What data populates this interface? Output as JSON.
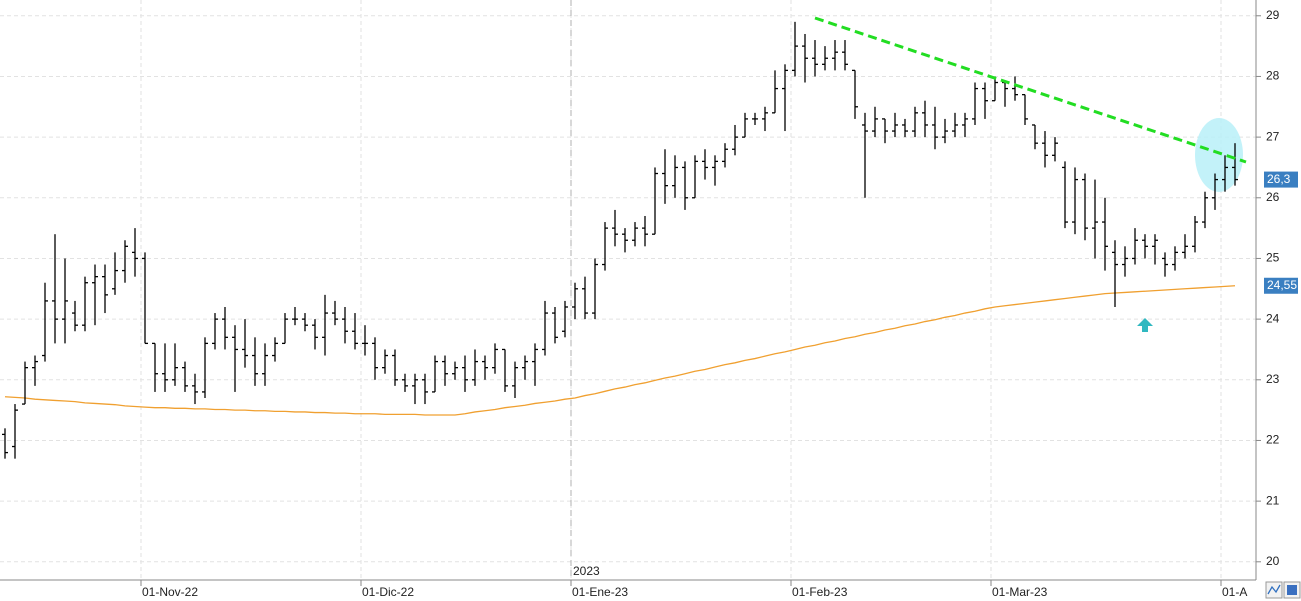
{
  "chart_data": {
    "type": "ohlc",
    "categories": [
      null,
      null,
      null,
      null,
      null,
      null,
      null,
      null,
      null,
      null,
      null,
      null,
      null,
      null,
      "01-Nov-22",
      null,
      null,
      null,
      null,
      null,
      null,
      null,
      null,
      null,
      null,
      null,
      null,
      null,
      null,
      null,
      null,
      null,
      null,
      null,
      null,
      null,
      "01-Dic-22",
      null,
      null,
      null,
      null,
      null,
      null,
      null,
      null,
      null,
      null,
      null,
      null,
      null,
      null,
      null,
      null,
      null,
      null,
      null,
      null,
      "01-Ene-23",
      null,
      null,
      null,
      null,
      null,
      null,
      null,
      null,
      null,
      null,
      null,
      null,
      null,
      null,
      null,
      null,
      null,
      null,
      null,
      null,
      null,
      "01-Feb-23",
      null,
      null,
      null,
      null,
      null,
      null,
      null,
      null,
      null,
      null,
      null,
      null,
      null,
      null,
      null,
      null,
      null,
      null,
      null,
      "01-Mar-23",
      null,
      null,
      null,
      null,
      null,
      null,
      null,
      null,
      null,
      null,
      null,
      null,
      null,
      null,
      null,
      null,
      null,
      null,
      null,
      null,
      null,
      null,
      "01-A",
      null
    ],
    "ohlc": {
      "color": "#000000",
      "open": [
        22.1,
        21.9,
        22.6,
        23.2,
        23.4,
        24.3,
        24.0,
        24.1,
        23.9,
        24.6,
        24.7,
        24.5,
        24.8,
        25.1,
        25.0,
        23.6,
        23.1,
        23.0,
        23.2,
        22.9,
        22.8,
        23.6,
        24.0,
        23.7,
        23.5,
        23.4,
        23.1,
        23.4,
        23.6,
        24.0,
        24.0,
        23.9,
        23.7,
        24.1,
        24.0,
        23.8,
        23.6,
        23.6,
        23.2,
        23.4,
        23.0,
        22.9,
        23.0,
        22.8,
        23.3,
        23.1,
        23.2,
        23.0,
        23.3,
        23.2,
        23.5,
        22.9,
        23.2,
        23.3,
        23.5,
        24.1,
        23.8,
        24.2,
        24.5,
        24.1,
        24.9,
        25.5,
        25.4,
        25.3,
        25.5,
        25.4,
        26.4,
        26.2,
        26.5,
        26.0,
        26.6,
        26.5,
        26.6,
        26.8,
        27.0,
        27.3,
        27.3,
        27.4,
        27.8,
        28.1,
        28.5,
        28.3,
        28.2,
        28.3,
        28.4,
        28.1,
        27.2,
        27.1,
        27.3,
        27.1,
        27.2,
        27.1,
        27.4,
        27.2,
        27.0,
        27.1,
        27.2,
        27.3,
        27.8,
        27.6,
        27.9,
        27.8,
        27.7,
        27.2,
        26.9,
        26.7,
        26.5,
        25.6,
        26.3,
        25.5,
        25.6,
        25.1,
        24.9,
        25.0,
        25.3,
        25.2,
        25.0,
        24.9,
        25.1,
        25.2,
        25.6,
        26.0,
        26.3,
        26.5
      ],
      "high": [
        22.2,
        22.6,
        23.3,
        23.4,
        24.6,
        25.4,
        25.0,
        24.3,
        24.7,
        24.9,
        24.9,
        25.1,
        25.3,
        25.5,
        25.1,
        23.6,
        23.6,
        23.6,
        23.3,
        23.1,
        23.7,
        24.1,
        24.2,
        23.9,
        24.0,
        23.7,
        23.6,
        23.7,
        24.1,
        24.2,
        24.1,
        24.0,
        24.4,
        24.3,
        24.2,
        24.1,
        23.9,
        23.7,
        23.5,
        23.5,
        23.1,
        23.1,
        23.1,
        23.4,
        23.4,
        23.3,
        23.4,
        23.5,
        23.4,
        23.6,
        23.5,
        23.3,
        23.4,
        23.6,
        24.3,
        24.2,
        24.3,
        24.6,
        24.7,
        25.0,
        25.6,
        25.8,
        25.5,
        25.6,
        25.7,
        26.5,
        26.8,
        26.7,
        26.6,
        26.7,
        26.8,
        26.7,
        26.9,
        27.2,
        27.4,
        27.4,
        27.5,
        28.1,
        28.2,
        28.9,
        28.7,
        28.6,
        28.5,
        28.6,
        28.6,
        28.1,
        27.4,
        27.5,
        27.3,
        27.4,
        27.3,
        27.5,
        27.6,
        27.5,
        27.3,
        27.4,
        27.4,
        27.9,
        27.9,
        28.0,
        27.9,
        28.0,
        27.7,
        27.2,
        27.1,
        27.0,
        26.6,
        26.5,
        26.4,
        26.3,
        26.0,
        25.3,
        25.2,
        25.5,
        25.4,
        25.4,
        25.1,
        25.2,
        25.4,
        25.7,
        26.1,
        26.4,
        26.7,
        26.9
      ],
      "low": [
        21.7,
        21.7,
        22.6,
        22.9,
        23.3,
        23.6,
        23.6,
        23.8,
        23.8,
        23.9,
        24.1,
        24.4,
        24.6,
        24.7,
        23.6,
        22.8,
        22.8,
        22.9,
        22.8,
        22.6,
        22.7,
        23.5,
        23.5,
        22.8,
        23.2,
        22.9,
        22.9,
        23.3,
        23.6,
        23.9,
        23.8,
        23.5,
        23.4,
        23.9,
        23.6,
        23.5,
        23.4,
        23.0,
        23.1,
        22.9,
        22.8,
        22.6,
        22.6,
        22.8,
        22.9,
        23.0,
        22.8,
        22.9,
        23.0,
        23.1,
        22.8,
        22.7,
        23.0,
        22.9,
        23.4,
        23.6,
        23.7,
        24.0,
        24.0,
        24.0,
        24.8,
        25.2,
        25.1,
        25.2,
        25.2,
        25.4,
        25.9,
        26.0,
        25.8,
        26.0,
        26.3,
        26.2,
        26.5,
        26.7,
        27.0,
        27.2,
        27.1,
        27.4,
        27.1,
        28.0,
        27.9,
        28.0,
        28.1,
        28.1,
        28.1,
        27.3,
        26.0,
        27.0,
        26.9,
        27.0,
        27.0,
        27.0,
        27.0,
        26.8,
        26.9,
        27.0,
        27.0,
        27.2,
        27.3,
        27.6,
        27.5,
        27.6,
        27.2,
        26.8,
        26.5,
        26.6,
        25.5,
        25.4,
        25.3,
        25.0,
        24.8,
        24.2,
        24.7,
        24.9,
        25.0,
        24.9,
        24.7,
        24.8,
        25.0,
        25.1,
        25.5,
        25.8,
        26.1,
        26.2
      ],
      "close": [
        21.8,
        22.5,
        23.2,
        23.3,
        24.3,
        24.0,
        24.3,
        23.9,
        24.6,
        24.7,
        24.4,
        24.8,
        25.2,
        25.0,
        23.6,
        23.1,
        23.0,
        23.2,
        22.9,
        22.8,
        23.6,
        24.0,
        23.7,
        23.5,
        23.4,
        23.1,
        23.4,
        23.6,
        24.0,
        24.0,
        23.9,
        23.7,
        24.1,
        24.0,
        23.8,
        23.6,
        23.6,
        23.2,
        23.4,
        23.0,
        22.9,
        23.0,
        22.8,
        23.3,
        23.1,
        23.2,
        23.0,
        23.3,
        23.2,
        23.5,
        22.9,
        23.2,
        23.3,
        23.5,
        24.1,
        23.7,
        24.2,
        24.5,
        24.1,
        24.9,
        25.5,
        25.4,
        25.3,
        25.5,
        25.4,
        26.4,
        26.2,
        26.5,
        26.0,
        26.6,
        26.5,
        26.6,
        26.8,
        27.0,
        27.3,
        27.3,
        27.4,
        27.8,
        28.1,
        28.5,
        28.3,
        28.2,
        28.3,
        28.4,
        28.2,
        27.5,
        27.1,
        27.3,
        27.1,
        27.2,
        27.1,
        27.4,
        27.2,
        27.0,
        27.1,
        27.2,
        27.3,
        27.8,
        27.6,
        27.9,
        27.8,
        27.7,
        27.3,
        26.9,
        26.7,
        26.9,
        25.6,
        26.3,
        25.5,
        25.6,
        25.2,
        24.9,
        25.0,
        25.3,
        25.2,
        25.3,
        24.9,
        25.1,
        25.2,
        25.6,
        26.0,
        26.3,
        26.5,
        26.3
      ]
    },
    "moving_average": {
      "color": "#f0a030",
      "values": [
        22.72,
        22.71,
        22.7,
        22.68,
        22.67,
        22.66,
        22.65,
        22.64,
        22.62,
        22.61,
        22.6,
        22.59,
        22.57,
        22.56,
        22.55,
        22.54,
        22.54,
        22.53,
        22.53,
        22.52,
        22.52,
        22.51,
        22.51,
        22.5,
        22.5,
        22.49,
        22.49,
        22.48,
        22.48,
        22.47,
        22.47,
        22.46,
        22.46,
        22.45,
        22.45,
        22.44,
        22.44,
        22.44,
        22.43,
        22.43,
        22.43,
        22.43,
        22.42,
        22.42,
        22.42,
        22.42,
        22.44,
        22.47,
        22.49,
        22.51,
        22.54,
        22.56,
        22.58,
        22.61,
        22.63,
        22.65,
        22.68,
        22.7,
        22.74,
        22.77,
        22.81,
        22.85,
        22.88,
        22.92,
        22.95,
        22.99,
        23.03,
        23.06,
        23.1,
        23.14,
        23.17,
        23.21,
        23.25,
        23.28,
        23.32,
        23.35,
        23.39,
        23.43,
        23.46,
        23.5,
        23.54,
        23.57,
        23.61,
        23.64,
        23.68,
        23.71,
        23.75,
        23.78,
        23.82,
        23.85,
        23.89,
        23.92,
        23.96,
        23.99,
        24.03,
        24.06,
        24.1,
        24.13,
        24.17,
        24.2,
        24.22,
        24.24,
        24.26,
        24.28,
        24.3,
        24.32,
        24.34,
        24.36,
        24.38,
        24.4,
        24.42,
        24.43,
        24.44,
        24.45,
        24.46,
        24.47,
        24.48,
        24.49,
        24.5,
        24.51,
        24.52,
        24.53,
        24.54,
        24.55
      ]
    },
    "year_label": "2023",
    "price_label": {
      "value": 26.3,
      "label": "26,3"
    },
    "average_label": {
      "value": 24.55,
      "label": "24,55"
    },
    "ylim": [
      19.7,
      29.26
    ],
    "yticks": [
      20,
      21,
      22,
      23,
      24,
      25,
      26,
      27,
      28,
      29
    ],
    "grid": true
  }
}
